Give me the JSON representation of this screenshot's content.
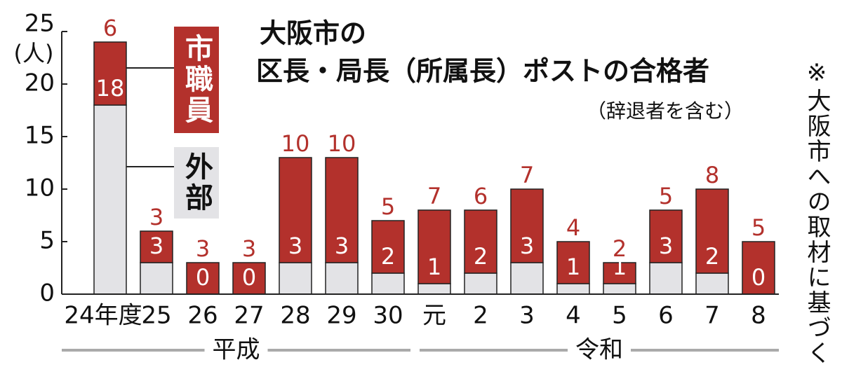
{
  "chart_data": {
    "type": "stacked-bar",
    "title": "大阪市の",
    "subtitle": "区長・局長（所属長）ポストの合格者",
    "note": "（辞退者を含む）",
    "source": "※大阪市への取材に基づく",
    "y_unit": "(人)",
    "categories": [
      "24年度",
      "25",
      "26",
      "27",
      "28",
      "29",
      "30",
      "元",
      "2",
      "3",
      "4",
      "5",
      "6",
      "7",
      "8"
    ],
    "eras": [
      "平成",
      "令和"
    ],
    "series": [
      {
        "name": "外部",
        "color": "#e3e3e6",
        "values": [
          18,
          3,
          0,
          0,
          3,
          3,
          2,
          1,
          2,
          3,
          1,
          1,
          3,
          2,
          0
        ]
      },
      {
        "name": "市職員",
        "color": "#b3312c",
        "values": [
          6,
          3,
          3,
          3,
          10,
          10,
          5,
          7,
          6,
          7,
          4,
          2,
          5,
          8,
          5
        ]
      }
    ],
    "ylim": [
      0,
      25
    ],
    "yticks": [
      0,
      5,
      10,
      15,
      20,
      25
    ]
  }
}
